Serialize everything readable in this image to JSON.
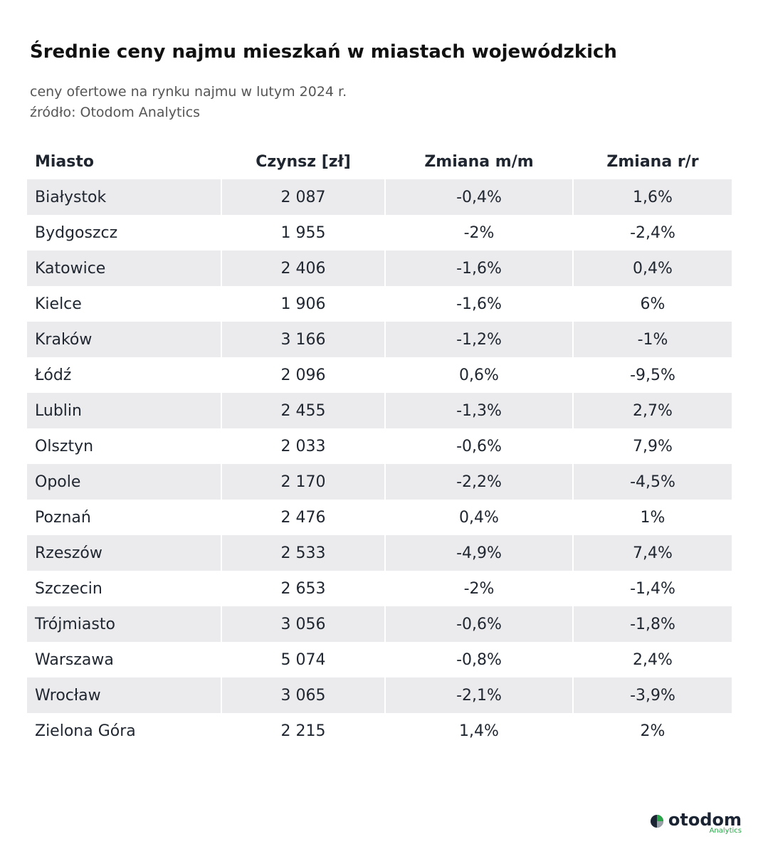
{
  "header": {
    "title": "Średnie ceny najmu mieszkań w miastach wojewódzkich",
    "subtitle": [
      "ceny ofertowe na rynku najmu  w lutym 2024 r.",
      "źródło: Otodom Analytics"
    ]
  },
  "table": {
    "columns": [
      "Miasto",
      "Czynsz [zł]",
      "Zmiana m/m",
      "Zmiana r/r"
    ],
    "rows": [
      [
        "Białystok",
        "2 087",
        "-0,4%",
        "1,6%"
      ],
      [
        "Bydgoszcz",
        "1 955",
        "-2%",
        "-2,4%"
      ],
      [
        "Katowice",
        "2 406",
        "-1,6%",
        "0,4%"
      ],
      [
        "Kielce",
        "1 906",
        "-1,6%",
        "6%"
      ],
      [
        "Kraków",
        "3 166",
        "-1,2%",
        "-1%"
      ],
      [
        "Łódź",
        "2 096",
        "0,6%",
        "-9,5%"
      ],
      [
        "Lublin",
        "2 455",
        "-1,3%",
        "2,7%"
      ],
      [
        "Olsztyn",
        "2 033",
        "-0,6%",
        "7,9%"
      ],
      [
        "Opole",
        "2 170",
        "-2,2%",
        "-4,5%"
      ],
      [
        "Poznań",
        "2 476",
        "0,4%",
        "1%"
      ],
      [
        "Rzeszów",
        "2 533",
        "-4,9%",
        "7,4%"
      ],
      [
        "Szczecin",
        "2 653",
        "-2%",
        "-1,4%"
      ],
      [
        "Trójmiasto",
        "3 056",
        "-0,6%",
        "-1,8%"
      ],
      [
        "Warszawa",
        "5 074",
        "-0,8%",
        "2,4%"
      ],
      [
        "Wrocław",
        "3 065",
        "-2,1%",
        "-3,9%"
      ],
      [
        "Zielona Góra",
        "2 215",
        "1,4%",
        "2%"
      ]
    ]
  },
  "logo": {
    "name": "otodom",
    "sub": "Analytics"
  }
}
